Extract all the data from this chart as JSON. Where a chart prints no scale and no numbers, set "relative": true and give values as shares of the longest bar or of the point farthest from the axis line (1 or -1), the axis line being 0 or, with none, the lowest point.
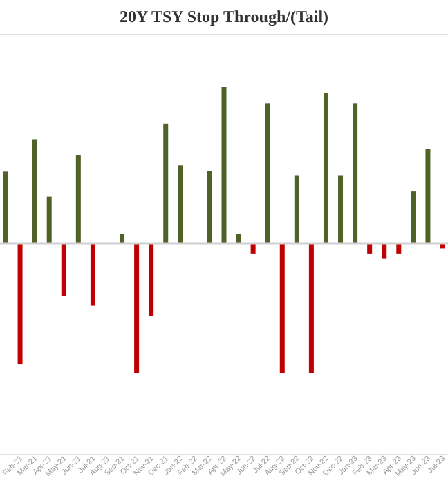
{
  "chart_data": {
    "type": "bar",
    "title": "20Y TSY Stop Through/(Tail)",
    "relative": true,
    "categories": [
      null,
      "Feb-21",
      "Mar-21",
      "Apr-21",
      "May-21",
      "Jun-21",
      "Jul-21",
      "Aug-21",
      "Sep-21",
      "Oct-21",
      "Nov-21",
      "Dec-21",
      "Jan-22",
      "Feb-22",
      "Mar-22",
      "Apr-22",
      "May-22",
      "Jun-22",
      "Jul-22",
      "Aug-22",
      "Sep-22",
      "Oct-22",
      "Nov-22",
      "Dec-22",
      "Jan-23",
      "Feb-23",
      "Mar-23",
      "Apr-23",
      "May-23",
      "Jun-23",
      "Jul-23"
    ],
    "values": [
      0.46,
      -0.77,
      0.667,
      0.3,
      -0.333,
      0.563,
      -0.397,
      null,
      0.063,
      -0.827,
      -0.463,
      0.767,
      0.5,
      null,
      0.463,
      1,
      0.063,
      -0.063,
      0.897,
      -0.827,
      0.433,
      -0.827,
      0.963,
      0.433,
      0.897,
      -0.063,
      -0.097,
      -0.063,
      0.333,
      0.603,
      -0.03
    ],
    "colors": [
      "#4f6228",
      "#c00000",
      "#4f6228",
      "#4f6228",
      "#c00000",
      "#4f6228",
      "#c00000",
      null,
      "#4f6228",
      "#c00000",
      "#c00000",
      "#4f6228",
      "#4f6228",
      null,
      "#4f6228",
      "#4f6228",
      "#4f6228",
      "#c00000",
      "#4f6228",
      "#c00000",
      "#4f6228",
      "#c00000",
      "#4f6228",
      "#4f6228",
      "#4f6228",
      "#c00000",
      "#c00000",
      "#c00000",
      "#4f6228",
      "#4f6228",
      "#c00000"
    ]
  }
}
